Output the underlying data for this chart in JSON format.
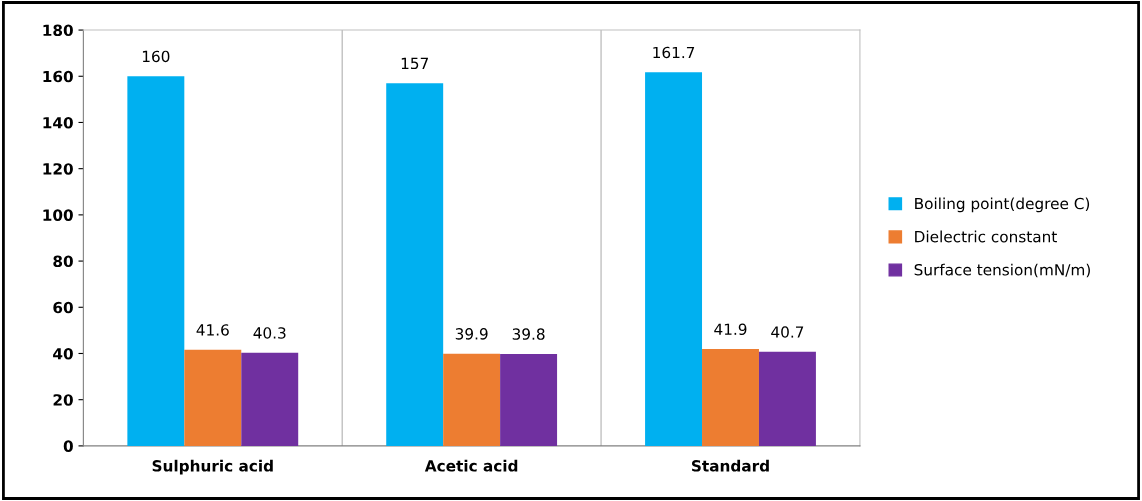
{
  "chart_data": {
    "type": "bar",
    "categories": [
      "Sulphuric acid",
      "Acetic acid",
      "Standard"
    ],
    "series": [
      {
        "name": "Boiling point(degree C)",
        "color": "#00b0f0",
        "values": [
          160,
          157,
          161.7
        ]
      },
      {
        "name": "Dielectric constant",
        "color": "#ed7d31",
        "values": [
          41.6,
          39.9,
          41.9
        ]
      },
      {
        "name": "Surface tension(mN/m)",
        "color": "#7030a0",
        "values": [
          40.3,
          39.8,
          40.7
        ]
      }
    ],
    "ylim": [
      0,
      180
    ],
    "yticks": [
      0,
      20,
      40,
      60,
      80,
      100,
      120,
      140,
      160,
      180
    ],
    "grid": "x",
    "legend": "right",
    "data_labels": true
  }
}
